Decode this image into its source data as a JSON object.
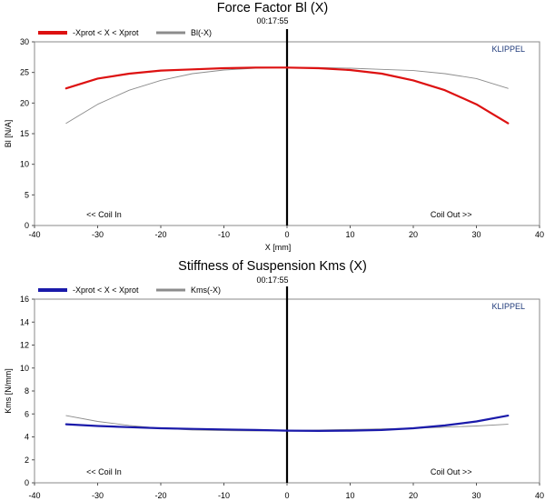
{
  "chart_data": [
    {
      "type": "line",
      "title": "Force Factor Bl (X)",
      "subtitle": "00:17:55",
      "xlabel": "X [mm]",
      "ylabel": "Bl [N/A]",
      "brand": "KLIPPEL",
      "xlim": [
        -40,
        40
      ],
      "ylim": [
        0,
        30
      ],
      "xticks": [
        -40,
        -30,
        -20,
        -10,
        0,
        10,
        20,
        30,
        40
      ],
      "yticks": [
        0,
        5,
        10,
        15,
        20,
        25,
        30
      ],
      "grid": false,
      "legend_position": "top-left",
      "annotations": {
        "left": "<< Coil In",
        "right": "Coil Out >>"
      },
      "series": [
        {
          "name": "-Xprot < X < Xprot",
          "color": "#dd1111",
          "x": [
            -35,
            -30,
            -25,
            -20,
            -15,
            -10,
            -5,
            0,
            5,
            10,
            15,
            20,
            25,
            30,
            35
          ],
          "y": [
            22.4,
            24.0,
            24.8,
            25.3,
            25.5,
            25.7,
            25.8,
            25.8,
            25.7,
            25.4,
            24.8,
            23.7,
            22.1,
            19.8,
            16.7
          ]
        },
        {
          "name": "Bl(-X)",
          "color": "#8c8c8c",
          "x": [
            -35,
            -30,
            -25,
            -20,
            -15,
            -10,
            -5,
            0,
            5,
            10,
            15,
            20,
            25,
            30,
            35
          ],
          "y": [
            16.7,
            19.8,
            22.1,
            23.7,
            24.8,
            25.4,
            25.7,
            25.8,
            25.8,
            25.7,
            25.5,
            25.3,
            24.8,
            24.0,
            22.4
          ]
        }
      ]
    },
    {
      "type": "line",
      "title": "Stiffness of Suspension Kms (X)",
      "subtitle": "00:17:55",
      "xlabel": "",
      "ylabel": "Kms [N/mm]",
      "brand": "KLIPPEL",
      "xlim": [
        -40,
        40
      ],
      "ylim": [
        0,
        16
      ],
      "xticks": [
        -40,
        -30,
        -20,
        -10,
        0,
        10,
        20,
        30,
        40
      ],
      "yticks": [
        0,
        2,
        4,
        6,
        8,
        10,
        12,
        14,
        16
      ],
      "grid": false,
      "legend_position": "top-left",
      "annotations": {
        "left": "<< Coil In",
        "right": "Coil Out >>"
      },
      "series": [
        {
          "name": "-Xprot < X < Xprot",
          "color": "#1a1aaa",
          "x": [
            -35,
            -30,
            -25,
            -20,
            -15,
            -10,
            -5,
            0,
            5,
            10,
            15,
            20,
            25,
            30,
            35
          ],
          "y": [
            5.1,
            4.95,
            4.85,
            4.75,
            4.7,
            4.65,
            4.6,
            4.55,
            4.52,
            4.55,
            4.6,
            4.75,
            5.0,
            5.35,
            5.85
          ]
        },
        {
          "name": "Kms(-X)",
          "color": "#8c8c8c",
          "x": [
            -35,
            -30,
            -25,
            -20,
            -15,
            -10,
            -5,
            0,
            5,
            10,
            15,
            20,
            25,
            30,
            35
          ],
          "y": [
            5.85,
            5.35,
            5.0,
            4.75,
            4.6,
            4.55,
            4.52,
            4.55,
            4.6,
            4.65,
            4.7,
            4.75,
            4.85,
            4.95,
            5.1
          ]
        }
      ]
    }
  ]
}
